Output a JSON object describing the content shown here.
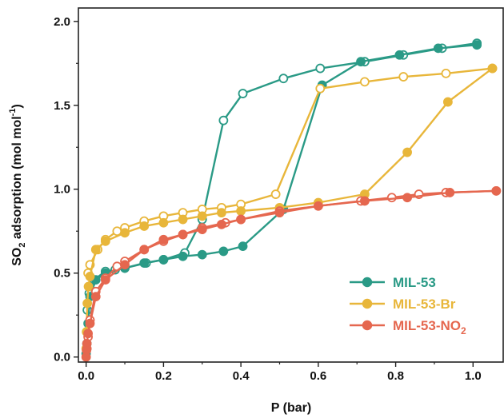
{
  "chart_data": {
    "type": "line",
    "xlabel": "P (bar)",
    "ylabel": {
      "pre": "SO",
      "sub": "2",
      "mid": " adsorption (mol mol",
      "sup": "-1",
      "post": ")"
    },
    "xlim": [
      -0.02,
      1.08
    ],
    "ylim": [
      -0.03,
      2.08
    ],
    "x_ticks": [
      0.0,
      0.2,
      0.4,
      0.6,
      0.8,
      1.0
    ],
    "x_tick_labels": [
      "0.0",
      "0.2",
      "0.4",
      "0.6",
      "0.8",
      "1.0"
    ],
    "y_ticks": [
      0.0,
      0.5,
      1.0,
      1.5,
      2.0
    ],
    "y_tick_labels": [
      "0.0",
      "0.5",
      "1.0",
      "1.5",
      "2.0"
    ],
    "legend_position": "bottom-right",
    "series": [
      {
        "name": "MIL-53",
        "name_sub": "",
        "color": "#2a9a86",
        "adsorption": {
          "x": [
            0.0,
            0.002,
            0.005,
            0.01,
            0.025,
            0.05,
            0.1,
            0.15,
            0.2,
            0.25,
            0.3,
            0.355,
            0.405,
            0.51,
            0.61,
            0.71,
            0.81,
            0.91,
            1.01
          ],
          "y": [
            0.02,
            0.08,
            0.2,
            0.36,
            0.46,
            0.5,
            0.53,
            0.56,
            0.58,
            0.6,
            0.61,
            0.63,
            0.66,
            0.88,
            1.62,
            1.76,
            1.8,
            1.84,
            1.86
          ]
        },
        "desorption": {
          "x": [
            1.01,
            0.92,
            0.82,
            0.72,
            0.605,
            0.51,
            0.405,
            0.355,
            0.3,
            0.255,
            0.2,
            0.155,
            0.1,
            0.075,
            0.05,
            0.02,
            0.008,
            0.003
          ],
          "y": [
            1.87,
            1.84,
            1.8,
            1.76,
            1.72,
            1.66,
            1.57,
            1.41,
            0.82,
            0.62,
            0.58,
            0.56,
            0.53,
            0.52,
            0.51,
            0.46,
            0.38,
            0.28
          ]
        }
      },
      {
        "name": "MIL-53-Br",
        "name_sub": "",
        "color": "#e8b63a",
        "adsorption": {
          "x": [
            0.0,
            0.001,
            0.003,
            0.006,
            0.01,
            0.025,
            0.05,
            0.1,
            0.15,
            0.2,
            0.25,
            0.3,
            0.35,
            0.4,
            0.5,
            0.6,
            0.72,
            0.83,
            0.935,
            1.05
          ],
          "y": [
            0.05,
            0.15,
            0.32,
            0.42,
            0.48,
            0.64,
            0.69,
            0.74,
            0.78,
            0.8,
            0.82,
            0.84,
            0.86,
            0.87,
            0.89,
            0.92,
            0.97,
            1.22,
            1.52,
            1.72
          ]
        },
        "desorption": {
          "x": [
            1.05,
            0.93,
            0.82,
            0.72,
            0.605,
            0.49,
            0.4,
            0.35,
            0.3,
            0.25,
            0.2,
            0.15,
            0.1,
            0.08,
            0.05,
            0.03,
            0.01,
            0.005
          ],
          "y": [
            1.72,
            1.69,
            1.67,
            1.64,
            1.6,
            0.97,
            0.91,
            0.89,
            0.88,
            0.86,
            0.84,
            0.81,
            0.77,
            0.75,
            0.7,
            0.64,
            0.55,
            0.5
          ]
        }
      },
      {
        "name": "MIL-53-NO",
        "name_sub": "2",
        "color": "#e5674f",
        "adsorption": {
          "x": [
            0.0,
            0.001,
            0.002,
            0.005,
            0.01,
            0.025,
            0.05,
            0.1,
            0.15,
            0.2,
            0.25,
            0.3,
            0.35,
            0.4,
            0.5,
            0.6,
            0.72,
            0.83,
            0.94,
            1.06
          ],
          "y": [
            0.0,
            0.04,
            0.08,
            0.14,
            0.2,
            0.36,
            0.46,
            0.55,
            0.64,
            0.7,
            0.73,
            0.76,
            0.79,
            0.82,
            0.86,
            0.9,
            0.93,
            0.95,
            0.98,
            0.99
          ]
        },
        "desorption": {
          "x": [
            1.06,
            0.93,
            0.86,
            0.79,
            0.71,
            0.6,
            0.5,
            0.4,
            0.36,
            0.3,
            0.25,
            0.2,
            0.15,
            0.1,
            0.08,
            0.05,
            0.025,
            0.01,
            0.005,
            0.002
          ],
          "y": [
            0.99,
            0.98,
            0.97,
            0.95,
            0.93,
            0.9,
            0.87,
            0.82,
            0.8,
            0.77,
            0.73,
            0.69,
            0.64,
            0.57,
            0.54,
            0.47,
            0.39,
            0.22,
            0.12,
            0.05
          ]
        }
      }
    ]
  }
}
